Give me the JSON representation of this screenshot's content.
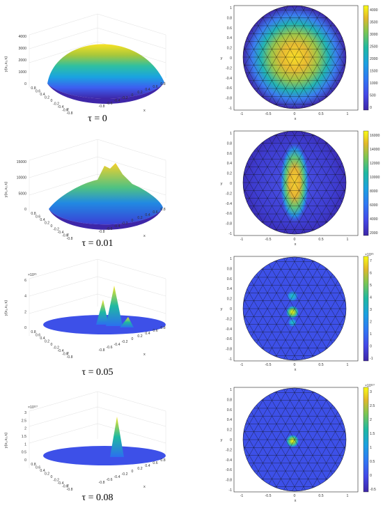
{
  "panels": [
    {
      "tau_label": "τ = 0",
      "exponent": "",
      "cb_ticks": [
        "4000",
        "3500",
        "3000",
        "2500",
        "2000",
        "1500",
        "1000",
        "500",
        "0"
      ],
      "z_ticks": [
        "4000",
        "3000",
        "2000",
        "1000",
        "0"
      ]
    },
    {
      "tau_label": "τ = 0.01",
      "exponent": "",
      "cb_ticks": [
        "16000",
        "14000",
        "12000",
        "10000",
        "8000",
        "6000",
        "4000",
        "2000"
      ],
      "z_ticks": [
        "15000",
        "10000",
        "5000",
        "0"
      ]
    },
    {
      "tau_label": "τ = 0.05",
      "exponent": "×10²⁵",
      "cb_ticks": [
        "7",
        "6",
        "5",
        "4",
        "3",
        "2",
        "1",
        "0",
        "-1"
      ],
      "z_ticks": [
        "6",
        "4",
        "2",
        "0"
      ]
    },
    {
      "tau_label": "τ = 0.08",
      "exponent": "×10¹²⁷",
      "cb_ticks": [
        "3",
        "2.5",
        "2",
        "1.5",
        "1",
        "0.5",
        "0",
        "-0.5"
      ],
      "z_ticks": [
        "3",
        "2.5",
        "2",
        "1.5",
        "1",
        "0.5",
        "0"
      ]
    }
  ],
  "axes": {
    "x_label": "x",
    "y_label": "y",
    "z_label": "y(x₁,x₂,τᵢ)",
    "map_x_ticks": [
      "-1",
      "-0.5",
      "0",
      "0.5",
      "1"
    ],
    "map_y_ticks": [
      "1",
      "0.8",
      "0.6",
      "0.4",
      "0.2",
      "0",
      "-0.2",
      "-0.4",
      "-0.6",
      "-0.8",
      "-1"
    ],
    "surf_ticks": [
      "0.8",
      "0.6",
      "0.4",
      "0.2",
      "0",
      "-0.2",
      "-0.4",
      "-0.6",
      "-0.8"
    ]
  },
  "colors": {
    "parula_low": "#3e26a8",
    "parula_mid": "#1fb9a1",
    "parula_high": "#f9fb15"
  },
  "chart_data": [
    {
      "type": "heatmap",
      "panel": "tau=0",
      "description_values": {
        "peak": 4000,
        "min": 0,
        "shape": "single dome centered at origin"
      }
    },
    {
      "type": "heatmap",
      "panel": "tau=0.01",
      "description_values": {
        "peak": 16000,
        "min": 2000,
        "shape": "vertical ridge along x=0"
      }
    },
    {
      "type": "heatmap",
      "panel": "tau=0.05",
      "description_values": {
        "peak": 7,
        "min": -1,
        "scale": "1e25",
        "spots_y": [
          0.1,
          -0.1
        ]
      }
    },
    {
      "type": "heatmap",
      "panel": "tau=0.08",
      "description_values": {
        "peak": 3,
        "min": -0.5,
        "scale": "1e127",
        "spots_y": [
          -0.1
        ]
      }
    }
  ]
}
